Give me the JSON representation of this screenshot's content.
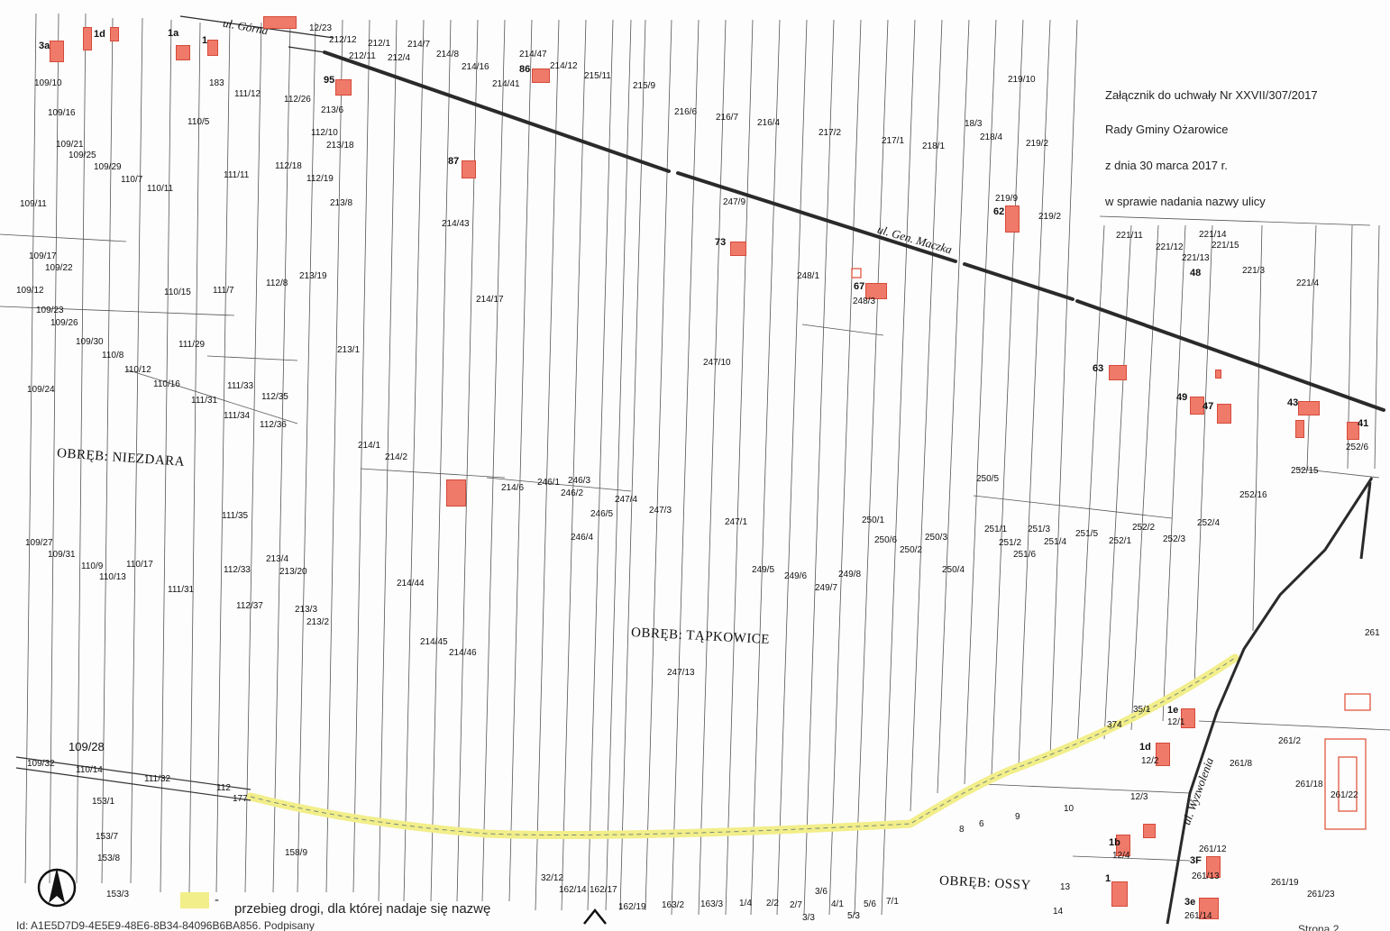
{
  "resolution": {
    "line1": "Załącznik do uchwały Nr XXVII/307/2017",
    "line2": "Rady Gminy Ożarowice",
    "line3": "z dnia 30 marca 2017 r.",
    "line4": "w sprawie nadania nazwy ulicy"
  },
  "areas": {
    "niezdara": "OBRĘB: NIEZDARA",
    "tapkowice": "OBRĘB: TĄPKOWICE",
    "ossy": "OBRĘB: OSSY"
  },
  "streets": {
    "gorna": "ul. Górna",
    "maczka": "ul. Gen. Maczka",
    "wyzwolenia": "ul. Wyzwolenia"
  },
  "legend": {
    "dash": "-",
    "text": "przebieg drogi, dla której nadaje się nazwę"
  },
  "footer": {
    "id_text": "Id: A1E5D7D9-4E5E9-48E6-8B34-84096B6BA856. Podpisany",
    "page_text": "Strona 2"
  },
  "colors": {
    "building": "#f07a6a",
    "road_highlight": "#f2ee8a",
    "road_line": "#2a2a2a"
  },
  "buildings": [
    "3a",
    "1d",
    "1a",
    "1",
    "86",
    "95",
    "87",
    "73",
    "62",
    "67",
    "48",
    "63",
    "49",
    "47",
    "43",
    "41",
    "1e",
    "1d",
    "1b",
    "1",
    "3F",
    "3e"
  ],
  "parcels": [
    "12/23",
    "212/12",
    "212/1",
    "214/7",
    "212/11",
    "212/4",
    "214/8",
    "214/16",
    "214/47",
    "214/12",
    "214/41",
    "215/11",
    "215/9",
    "109/10",
    "183",
    "111/12",
    "112/26",
    "213/6",
    "109/16",
    "110/5",
    "112/10",
    "213/18",
    "109/21",
    "109/25",
    "109/29",
    "110/7",
    "110/11",
    "111/11",
    "112/18",
    "112/19",
    "213/8",
    "109/11",
    "214/43",
    "216/6",
    "216/7",
    "216/4",
    "217/2",
    "217/1",
    "218/1",
    "218/4",
    "219/2",
    "219/10",
    "18/3",
    "219/9",
    "219/2",
    "247/9",
    "221/11",
    "221/12",
    "221/14",
    "221/13",
    "221/15",
    "221/3",
    "221/4",
    "109/17",
    "109/22",
    "109/12",
    "109/23",
    "109/26",
    "110/15",
    "111/7",
    "112/8",
    "213/19",
    "214/17",
    "248/1",
    "248/3",
    "109/30",
    "110/8",
    "111/29",
    "213/1",
    "247/10",
    "110/12",
    "110/16",
    "111/33",
    "111/31",
    "112/35",
    "111/34",
    "112/36",
    "109/24",
    "214/1",
    "214/2",
    "214/6",
    "246/1",
    "246/3",
    "246/2",
    "247/4",
    "247/3",
    "246/5",
    "246/4",
    "247/1",
    "250/1",
    "250/5",
    "250/6",
    "250/3",
    "250/2",
    "250/4",
    "251/1",
    "251/2",
    "251/3",
    "251/4",
    "251/5",
    "251/6",
    "252/1",
    "252/2",
    "252/3",
    "252/4",
    "252/15",
    "252/16",
    "252/6",
    "111/35",
    "109/27",
    "109/31",
    "110/9",
    "110/17",
    "110/13",
    "112/33",
    "213/4",
    "213/20",
    "214/44",
    "111/31",
    "249/5",
    "249/6",
    "249/8",
    "249/7",
    "112/37",
    "213/3",
    "213/2",
    "214/45",
    "214/46",
    "247/13",
    "261",
    "261/2",
    "261/8",
    "261/18",
    "261/22",
    "261/12",
    "261/13",
    "261/19",
    "261/23",
    "261/14",
    "374",
    "35/1",
    "12/1",
    "12/2",
    "12/3",
    "12/4",
    "10",
    "8",
    "6",
    "9",
    "14",
    "13",
    "109/28",
    "109/32",
    "110/14",
    "111/32",
    "112",
    "177",
    "153/1",
    "153/7",
    "153/8",
    "153/3",
    "158/9",
    "32/12",
    "162/14",
    "162/17",
    "162/19",
    "163/2",
    "163/3",
    "1/4",
    "2/2",
    "2/7",
    "3/6",
    "3/3",
    "4/1",
    "5/6",
    "5/3",
    "7/1"
  ]
}
